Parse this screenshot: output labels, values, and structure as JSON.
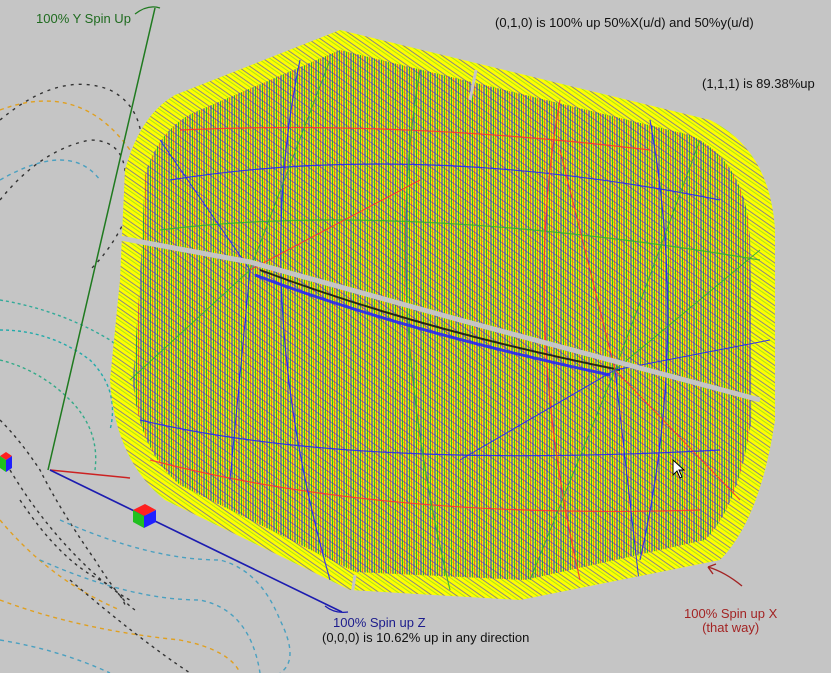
{
  "annotations": {
    "y_axis_label": "100% Y Spin Up",
    "point_010_note": "(0,1,0) is 100% up 50%X(u/d) and 50%y(u/d)",
    "point_111_note": "(1,1,1) is 89.38%up",
    "z_axis_label": "100% Spin up Z",
    "point_000_note": "(0,0,0) is 10.62% up in any direction",
    "x_axis_label": "100% Spin up X",
    "x_axis_sublabel": "(that way)"
  },
  "colors": {
    "background": "#c5c5c5",
    "cube_fill": "#ffff00",
    "y_axis": "#1f7a1f",
    "z_axis": "#1c1cb0",
    "x_axis": "#cc2222",
    "cube_x_face": "#ff2020",
    "cube_y_face": "#20c020",
    "cube_z_face": "#2020ff"
  },
  "icons": [
    "mouse-cursor-icon",
    "annotation-arrow-icon",
    "origin-cube-icon"
  ]
}
